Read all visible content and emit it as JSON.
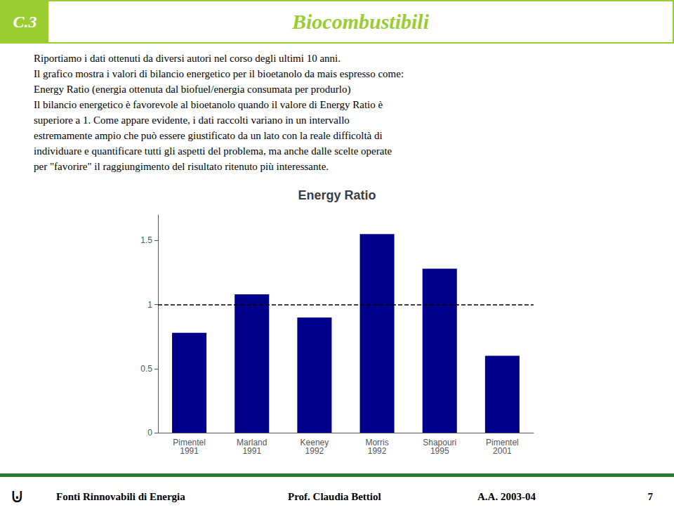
{
  "header": {
    "label": "C.3",
    "text": "Biocombustibili",
    "color": "#9ACD32"
  },
  "body_lines": [
    "Riportiamo i dati ottenuti da diversi autori nel corso degli ultimi 10 anni.",
    "Il grafico mostra i valori di bilancio energetico per il bioetanolo da mais espresso come:",
    "Energy Ratio (energia ottenuta dal biofuel/energia consumata per produrlo)",
    "Il bilancio energetico è favorevole al bioetanolo quando il valore di Energy Ratio è",
    "superiore a 1. Come appare evidente, i dati raccolti variano in un intervallo",
    "estremamente ampio che può essere giustificato da un lato con la reale difficoltà di",
    "individuare e quantificare tutti gli aspetti del problema, ma anche dalle scelte operate",
    "per \"favorire\" il raggiungimento del risultato ritenuto più interessante."
  ],
  "footer": {
    "logo": "⊍",
    "left": "Fonti Rinnovabili di Energia",
    "center": "Prof. Claudia Bettiol",
    "right": "A.A. 2003-04",
    "page_number": "7",
    "color": "#2E7D32"
  },
  "chart_data": {
    "type": "bar",
    "title": "Energy Ratio",
    "categories": [
      "Pimentel\n1991",
      "Marland\n1991",
      "Keeney\n1992",
      "Morris\n1992",
      "Shapouri\n1995",
      "Pimentel\n2001"
    ],
    "values": [
      0.78,
      1.08,
      0.9,
      1.55,
      1.28,
      0.6
    ],
    "color": "#00008B",
    "ylim": [
      0,
      1.7
    ],
    "yticks": [
      0,
      0.5,
      1,
      1.5
    ],
    "grid": false,
    "reference_lines": [
      {
        "y": 1.0,
        "line_style": "dashed"
      }
    ]
  }
}
